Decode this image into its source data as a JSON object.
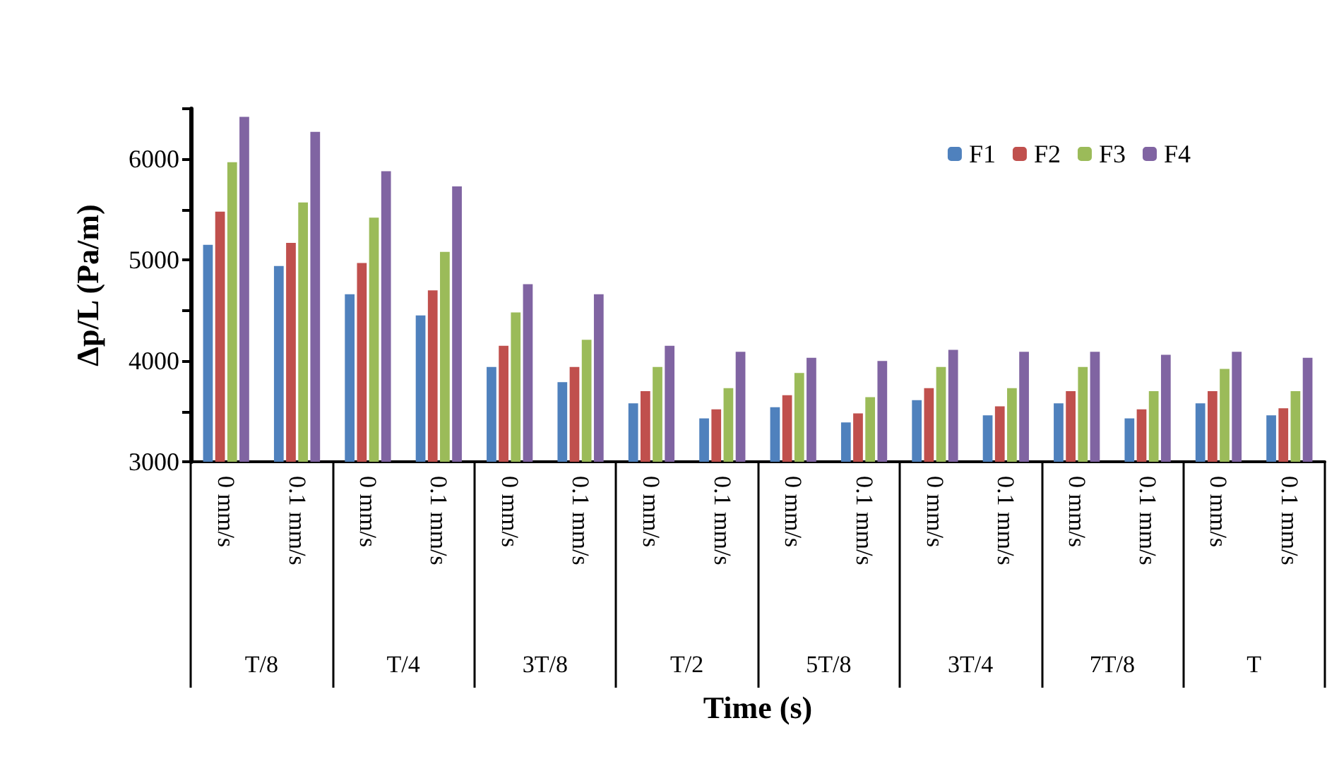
{
  "chart_data": {
    "type": "bar",
    "xlabel": "Time (s)",
    "ylabel": "Δp/L (Pa/m)",
    "categories": [
      "0 mm/s",
      "0.1 mm/s",
      "0 mm/s",
      "0.1 mm/s",
      "0 mm/s",
      "0.1 mm/s",
      "0 mm/s",
      "0.1 mm/s",
      "0 mm/s",
      "0.1 mm/s",
      "0 mm/s",
      "0.1 mm/s",
      "0 mm/s",
      "0.1 mm/s",
      "0 mm/s",
      "0.1 mm/s"
    ],
    "annotations": [
      "T/8",
      "T/4",
      "3T/8",
      "T/2",
      "5T/8",
      "3T/4",
      "7T/8",
      "T"
    ],
    "series": [
      {
        "name": "F1",
        "color": "#4f81bd",
        "values": [
          5150,
          4940,
          4660,
          4450,
          3940,
          3790,
          3580,
          3430,
          3540,
          3390,
          3610,
          3460,
          3580,
          3430,
          3580,
          3460
        ]
      },
      {
        "name": "F2",
        "color": "#c0504d",
        "values": [
          5480,
          5170,
          4970,
          4700,
          4150,
          3940,
          3700,
          3520,
          3660,
          3480,
          3730,
          3550,
          3700,
          3520,
          3700,
          3530
        ]
      },
      {
        "name": "F3",
        "color": "#9bbb59",
        "values": [
          5970,
          5570,
          5420,
          5080,
          4480,
          4210,
          3940,
          3730,
          3880,
          3640,
          3940,
          3730,
          3940,
          3700,
          3920,
          3700
        ]
      },
      {
        "name": "F4",
        "color": "#8064a2",
        "values": [
          6420,
          6270,
          5880,
          5730,
          4760,
          4660,
          4150,
          4090,
          4030,
          4000,
          4110,
          4090,
          4090,
          4060,
          4090,
          4030
        ]
      }
    ],
    "ylim": [
      3000,
      6500
    ],
    "yticks": [
      3000,
      {
        "value": 3500,
        "label": null
      },
      4000,
      {
        "value": 4500,
        "label": null
      },
      5000,
      {
        "value": 5500,
        "label": null
      },
      6000,
      {
        "value": 6500,
        "label": null
      }
    ],
    "grid": false,
    "legend": "top right"
  }
}
